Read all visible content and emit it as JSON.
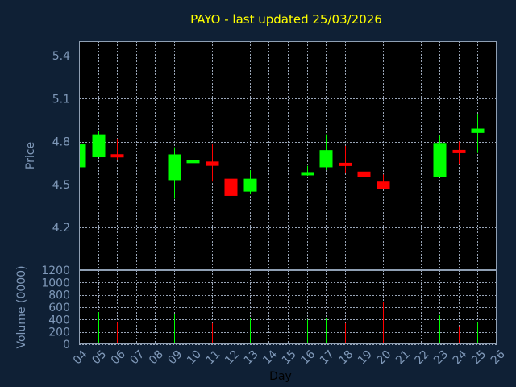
{
  "colors": {
    "background": "#0f2035",
    "plot": "#000000",
    "grid": "#9aa6b8",
    "frame": "#8f9fb3",
    "up": "#00ff00",
    "down": "#ff0000",
    "title": "#ffff00",
    "tick_text": "#7f98b8"
  },
  "chart_data": {
    "type": "candlestick",
    "title": "PAYO - last updated 25/03/2026",
    "xlabel": "Day",
    "price_axis": {
      "label": "Price",
      "range": [
        4.06,
        4.5
      ],
      "ticks": [
        4.2,
        4.5,
        4.8,
        5.1,
        5.4
      ],
      "tick_labels": [
        "4.2",
        "4.5",
        "4.8",
        "5.1",
        "5.4"
      ]
    },
    "volume_axis": {
      "label": "Volume (0000)",
      "range": [
        0,
        1200
      ],
      "ticks": [
        0,
        200,
        400,
        600,
        800,
        1000,
        1200
      ],
      "tick_labels": [
        "0",
        "200",
        "400",
        "600",
        "800",
        "1000",
        "1200"
      ]
    },
    "x_axis": {
      "range": [
        4,
        26
      ],
      "ticks": [
        4,
        5,
        6,
        7,
        8,
        9,
        10,
        11,
        12,
        13,
        14,
        15,
        16,
        17,
        18,
        19,
        20,
        21,
        22,
        23,
        24,
        25,
        26
      ],
      "tick_labels": [
        "04",
        "05",
        "06",
        "07",
        "08",
        "09",
        "10",
        "11",
        "12",
        "13",
        "14",
        "15",
        "16",
        "17",
        "18",
        "19",
        "20",
        "21",
        "22",
        "23",
        "24",
        "25",
        "26"
      ]
    },
    "grid": true,
    "candles": [
      {
        "day": 4,
        "open": 4.62,
        "high": 4.78,
        "low": 4.62,
        "close": 4.78,
        "volume": 0
      },
      {
        "day": 5,
        "open": 4.69,
        "high": 4.87,
        "low": 4.69,
        "close": 4.85,
        "volume": 520
      },
      {
        "day": 6,
        "open": 4.71,
        "high": 4.82,
        "low": 4.67,
        "close": 4.69,
        "volume": 350
      },
      {
        "day": 9,
        "open": 4.53,
        "high": 4.76,
        "low": 4.4,
        "close": 4.71,
        "volume": 490
      },
      {
        "day": 10,
        "open": 4.65,
        "high": 4.79,
        "low": 4.55,
        "close": 4.67,
        "volume": 370
      },
      {
        "day": 11,
        "open": 4.66,
        "high": 4.78,
        "low": 4.52,
        "close": 4.63,
        "volume": 340
      },
      {
        "day": 12,
        "open": 4.54,
        "high": 4.64,
        "low": 4.31,
        "close": 4.42,
        "volume": 1130
      },
      {
        "day": 13,
        "open": 4.45,
        "high": 4.6,
        "low": 4.43,
        "close": 4.54,
        "volume": 420
      },
      {
        "day": 16,
        "open": 4.57,
        "high": 4.63,
        "low": 4.56,
        "close": 4.58,
        "volume": 400
      },
      {
        "day": 17,
        "open": 4.62,
        "high": 4.85,
        "low": 4.6,
        "close": 4.74,
        "volume": 420
      },
      {
        "day": 18,
        "open": 4.65,
        "high": 4.77,
        "low": 4.58,
        "close": 4.63,
        "volume": 340
      },
      {
        "day": 19,
        "open": 4.59,
        "high": 4.63,
        "low": 4.48,
        "close": 4.55,
        "volume": 740
      },
      {
        "day": 20,
        "open": 4.52,
        "high": 4.57,
        "low": 4.47,
        "close": 4.47,
        "volume": 680
      },
      {
        "day": 23,
        "open": 4.55,
        "high": 4.84,
        "low": 4.55,
        "close": 4.79,
        "volume": 470
      },
      {
        "day": 24,
        "open": 4.74,
        "high": 4.8,
        "low": 4.64,
        "close": 4.72,
        "volume": 290
      },
      {
        "day": 25,
        "open": 4.86,
        "high": 4.99,
        "low": 4.72,
        "close": 4.89,
        "volume": 350
      }
    ]
  }
}
